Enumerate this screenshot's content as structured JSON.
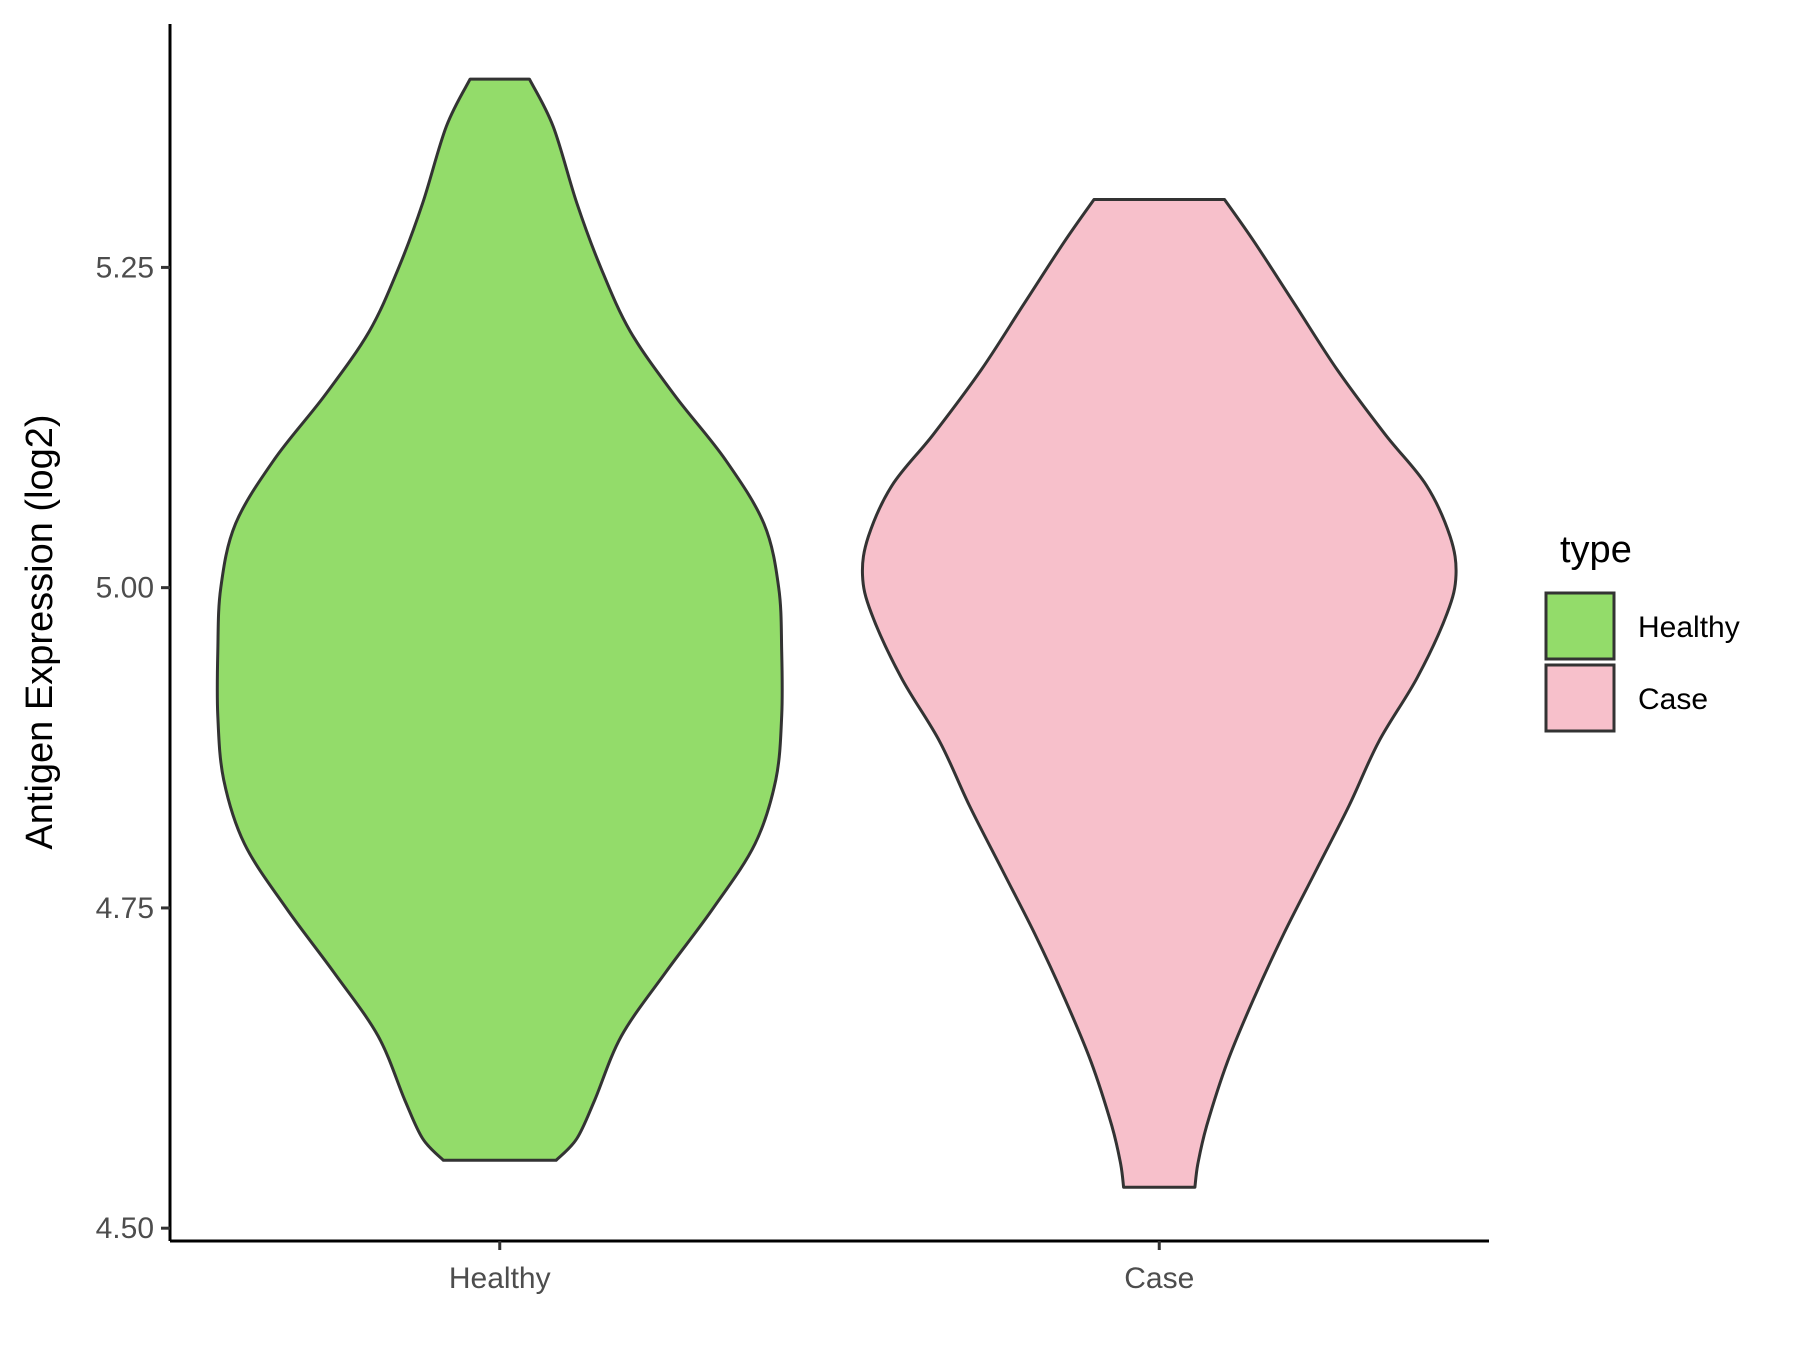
{
  "chart_data": {
    "type": "violin",
    "xlabel": "",
    "ylabel": "Antigen Expression (log2)",
    "ylim": [
      4.49,
      5.44
    ],
    "yticks": [
      "4.50",
      "4.75",
      "5.00",
      "5.25"
    ],
    "categories": [
      "Healthy",
      "Case"
    ],
    "grid": false,
    "legend": {
      "title": "type",
      "placement": "right",
      "entries": [
        "Healthy",
        "Case"
      ]
    },
    "colors": {
      "Healthy": "#93dc6a",
      "Case": "#f7c0cb",
      "outline": "#333333"
    },
    "series": [
      {
        "name": "Healthy",
        "min": 4.553,
        "max": 5.397,
        "density_profile": [
          [
            5.397,
            0.1
          ],
          [
            5.36,
            0.18
          ],
          [
            5.3,
            0.26
          ],
          [
            5.25,
            0.34
          ],
          [
            5.2,
            0.44
          ],
          [
            5.15,
            0.59
          ],
          [
            5.1,
            0.76
          ],
          [
            5.05,
            0.89
          ],
          [
            5.0,
            0.94
          ],
          [
            4.95,
            0.95
          ],
          [
            4.9,
            0.95
          ],
          [
            4.85,
            0.93
          ],
          [
            4.8,
            0.86
          ],
          [
            4.75,
            0.72
          ],
          [
            4.7,
            0.56
          ],
          [
            4.65,
            0.41
          ],
          [
            4.6,
            0.32
          ],
          [
            4.57,
            0.26
          ],
          [
            4.553,
            0.19
          ]
        ]
      },
      {
        "name": "Case",
        "min": 4.532,
        "max": 5.303,
        "density_profile": [
          [
            5.303,
            0.22
          ],
          [
            5.27,
            0.32
          ],
          [
            5.22,
            0.46
          ],
          [
            5.17,
            0.6
          ],
          [
            5.12,
            0.76
          ],
          [
            5.08,
            0.9
          ],
          [
            5.04,
            0.98
          ],
          [
            5.01,
            1.0
          ],
          [
            4.98,
            0.97
          ],
          [
            4.93,
            0.87
          ],
          [
            4.88,
            0.74
          ],
          [
            4.83,
            0.64
          ],
          [
            4.78,
            0.53
          ],
          [
            4.73,
            0.42
          ],
          [
            4.68,
            0.32
          ],
          [
            4.63,
            0.23
          ],
          [
            4.58,
            0.16
          ],
          [
            4.55,
            0.13
          ],
          [
            4.532,
            0.12
          ]
        ]
      }
    ]
  }
}
